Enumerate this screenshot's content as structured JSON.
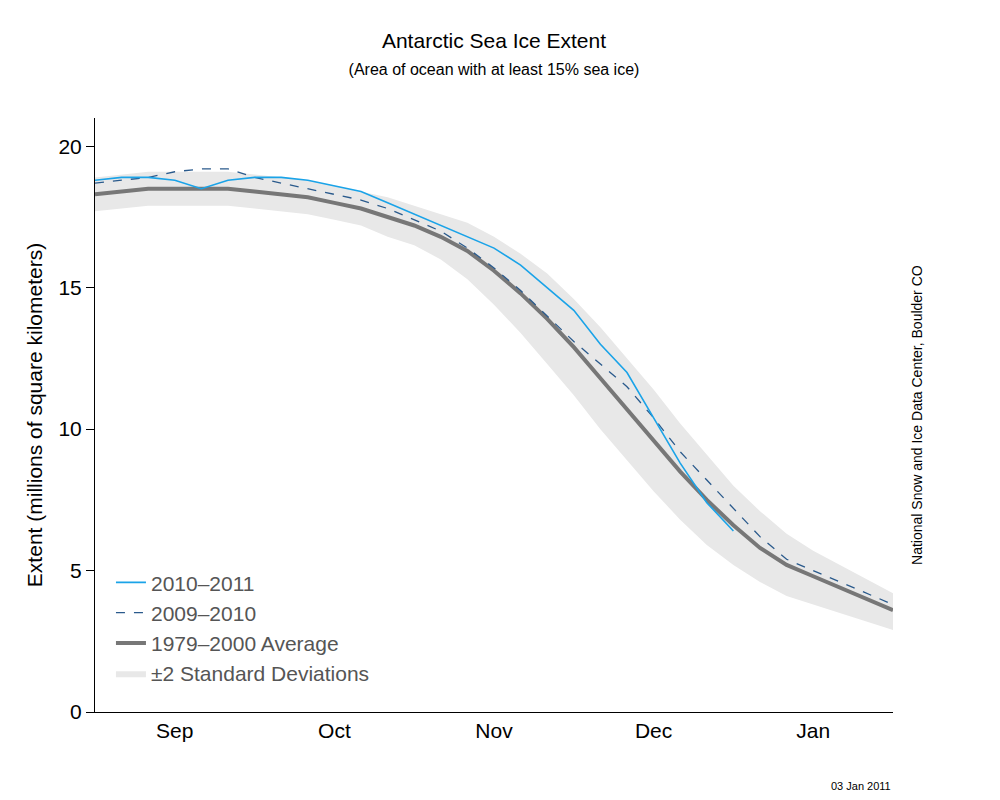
{
  "chart_data": {
    "type": "line",
    "title": "Antarctic Sea Ice Extent",
    "subtitle": "(Area of ocean with at least 15% sea ice)",
    "y_label": "Extent (millions of square kilometers)",
    "categories": [
      null,
      null,
      null,
      "Sep",
      null,
      null,
      null,
      null,
      null,
      "Oct",
      null,
      null,
      null,
      null,
      null,
      "Nov",
      null,
      null,
      null,
      null,
      null,
      "Dec",
      null,
      null,
      null,
      null,
      null,
      "Jan",
      null,
      null,
      null
    ],
    "series": [
      {
        "name": "2010–2011",
        "color": "#1aa3e8",
        "line_style": "solid",
        "values": [
          18.8,
          18.9,
          18.9,
          18.8,
          18.5,
          18.8,
          18.9,
          18.9,
          18.8,
          18.6,
          18.4,
          18.0,
          17.6,
          17.2,
          16.8,
          16.4,
          15.8,
          15.0,
          14.2,
          13.0,
          12.0,
          10.4,
          8.8,
          7.4,
          6.4,
          null,
          null,
          null,
          null,
          null,
          null
        ]
      },
      {
        "name": "2009–2010",
        "color": "#2a5a8c",
        "line_style": "dashed",
        "values": [
          18.7,
          18.8,
          18.9,
          19.1,
          19.2,
          19.2,
          18.9,
          18.7,
          18.5,
          18.3,
          18.1,
          17.8,
          17.4,
          17.0,
          16.4,
          15.7,
          14.9,
          14.0,
          13.1,
          12.3,
          11.5,
          10.4,
          9.2,
          8.2,
          7.2,
          6.2,
          5.4,
          5.0,
          4.6,
          4.2,
          3.8
        ]
      },
      {
        "name": "1979–2000 Average",
        "color": "#777777",
        "line_style": "thick",
        "values": [
          18.3,
          18.4,
          18.5,
          18.5,
          18.5,
          18.5,
          18.4,
          18.3,
          18.2,
          18.0,
          17.8,
          17.5,
          17.2,
          16.8,
          16.3,
          15.6,
          14.8,
          13.9,
          12.9,
          11.8,
          10.7,
          9.6,
          8.5,
          7.5,
          6.6,
          5.8,
          5.2,
          4.8,
          4.4,
          4.0,
          3.6
        ]
      }
    ],
    "band": {
      "name": "±2 Standard Deviations",
      "color": "#e8e8e8",
      "upper": [
        18.9,
        19.0,
        19.1,
        19.1,
        19.1,
        19.1,
        19.0,
        18.9,
        18.8,
        18.6,
        18.4,
        18.2,
        17.9,
        17.6,
        17.3,
        16.8,
        16.2,
        15.5,
        14.6,
        13.6,
        12.5,
        11.4,
        10.2,
        9.1,
        8.0,
        7.1,
        6.3,
        5.7,
        5.2,
        4.7,
        4.2
      ],
      "lower": [
        17.7,
        17.8,
        17.9,
        17.9,
        17.9,
        17.9,
        17.8,
        17.7,
        17.6,
        17.4,
        17.2,
        16.8,
        16.5,
        16.0,
        15.3,
        14.4,
        13.4,
        12.3,
        11.2,
        10.0,
        8.9,
        7.8,
        6.8,
        5.9,
        5.2,
        4.6,
        4.1,
        3.8,
        3.5,
        3.2,
        2.9
      ]
    },
    "ylim": [
      0,
      21
    ],
    "yticks": [
      0,
      5,
      10,
      15,
      20
    ],
    "grid": false,
    "legend": "lower left",
    "annotations": [
      "National Snow and Ice Data Center, Boulder CO",
      "03 Jan 2011"
    ]
  }
}
